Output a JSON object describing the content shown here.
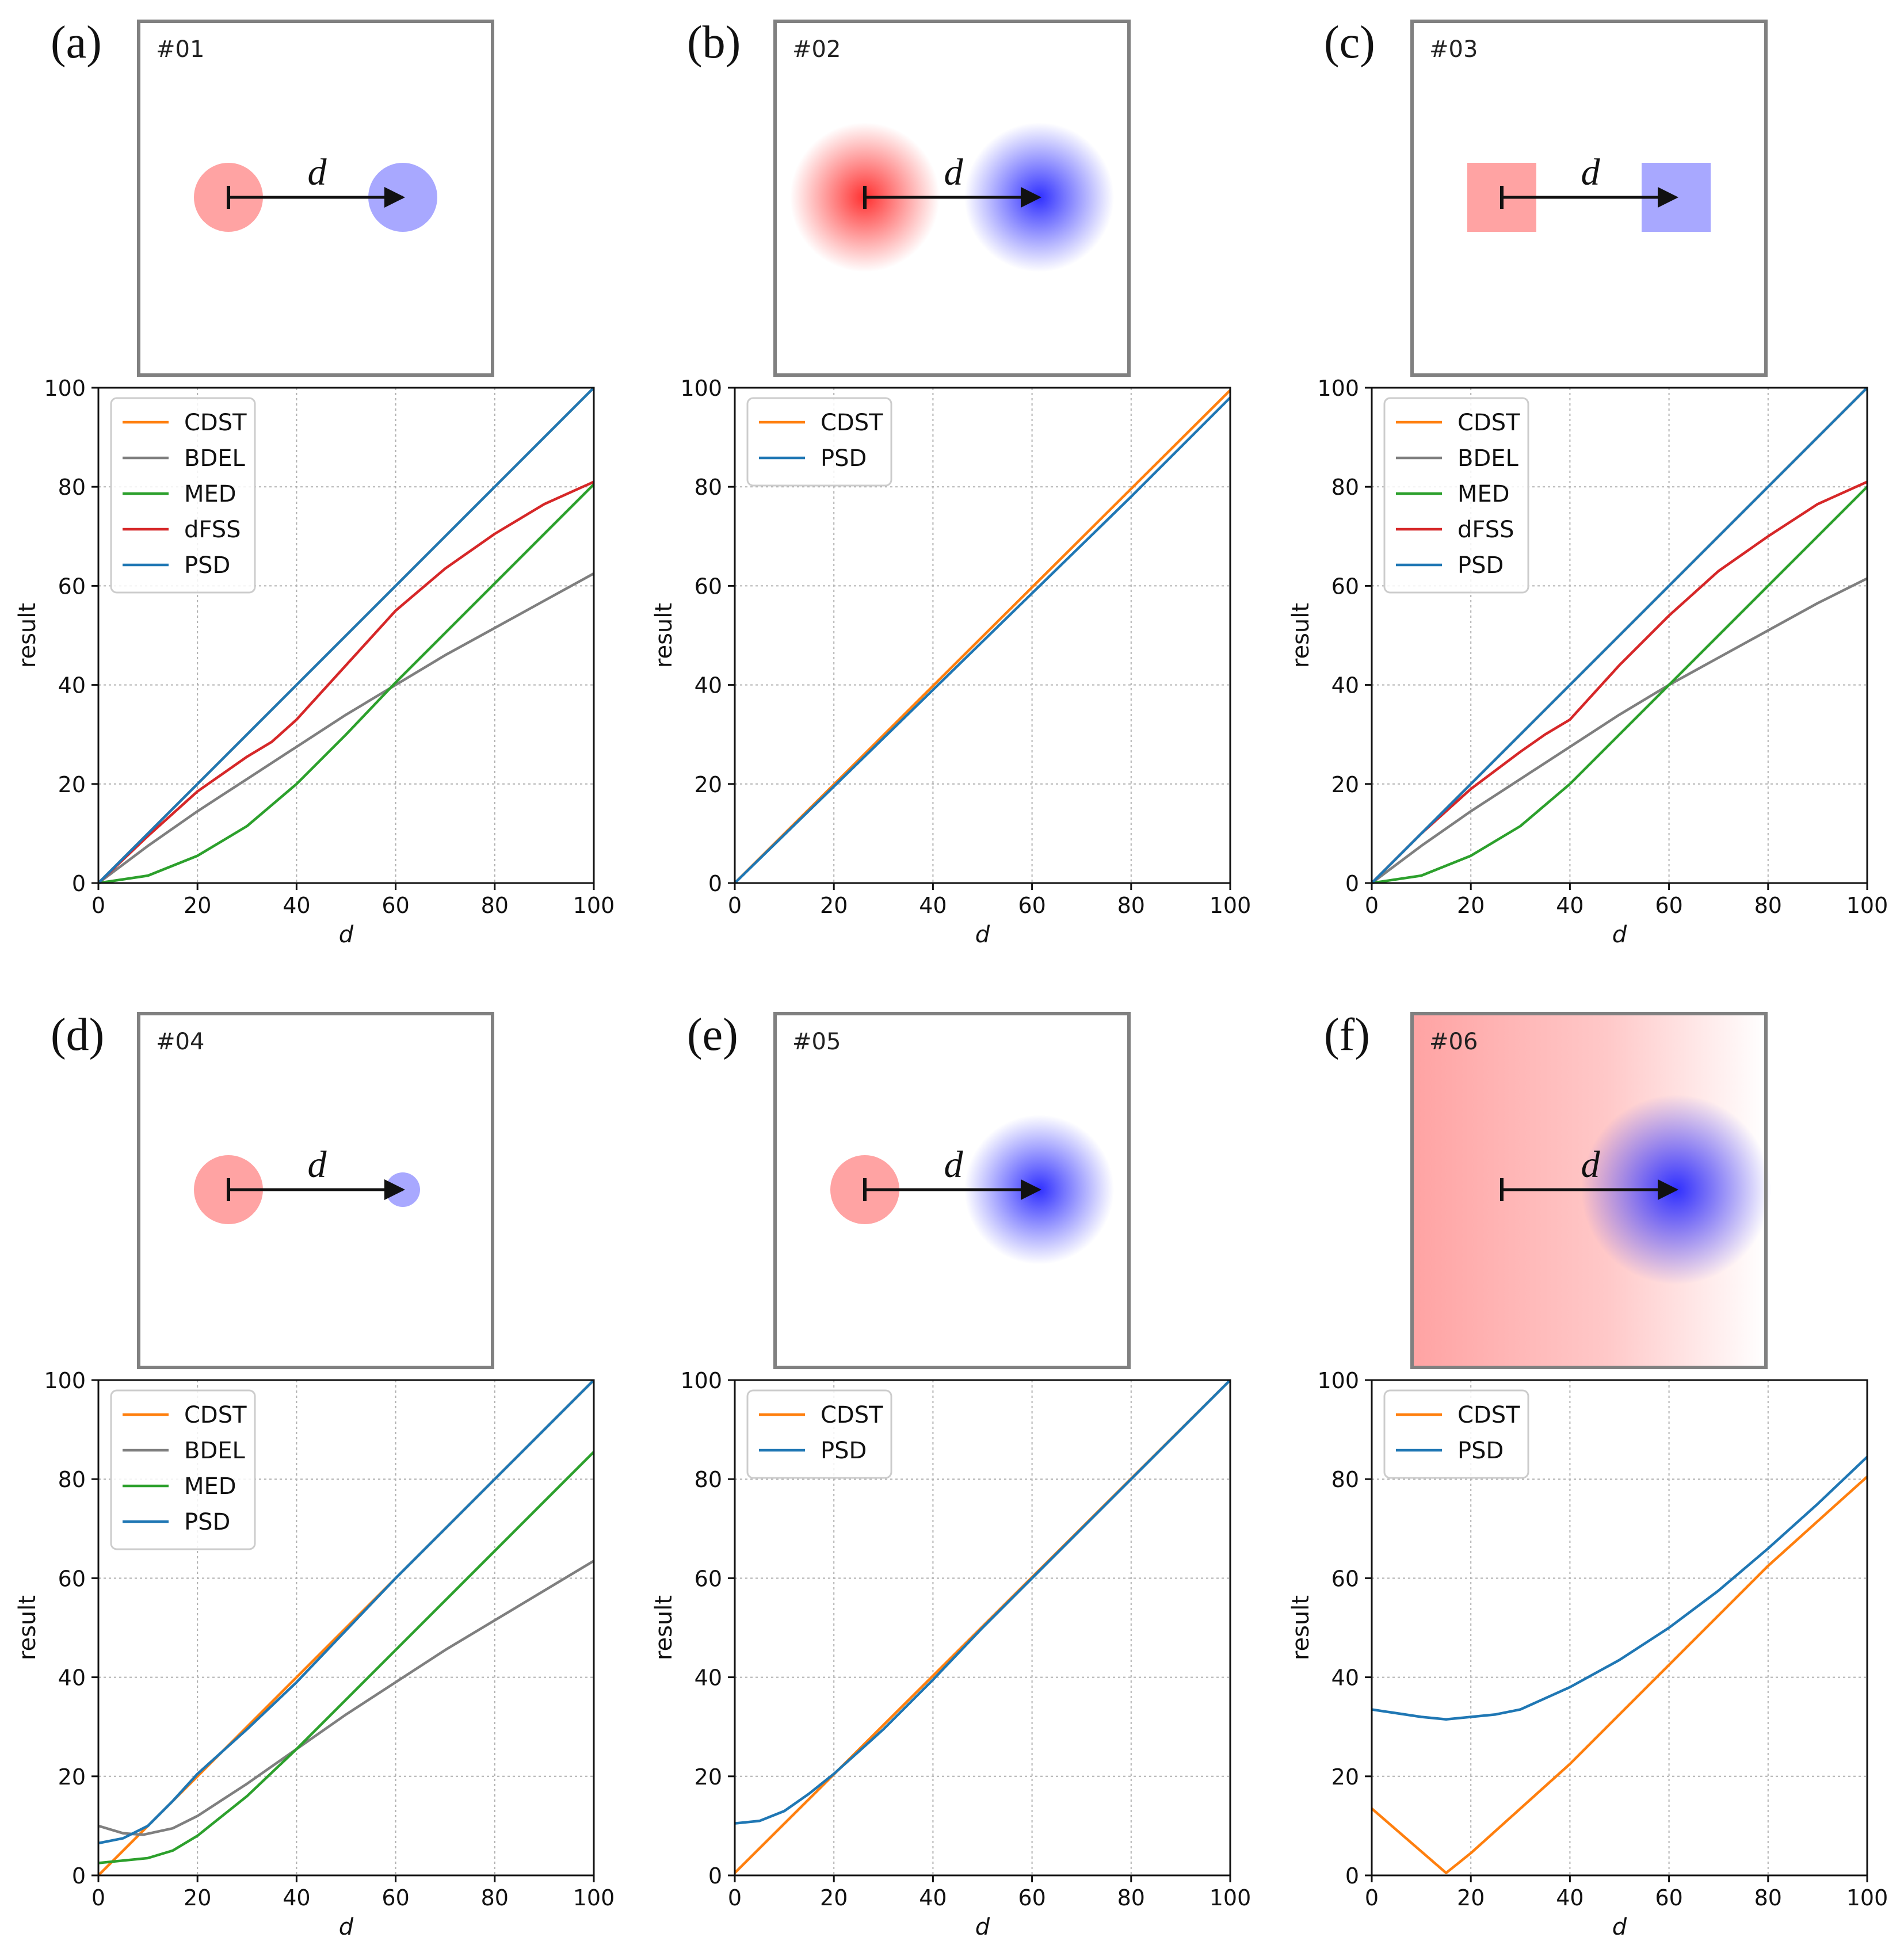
{
  "colors": {
    "CDST": "#ff7f0e",
    "BDEL": "#7f7f7f",
    "MED": "#2ca02c",
    "dFSS": "#d62728",
    "PSD": "#1f77b4",
    "red_object": "#ffa3a3",
    "blue_object": "#a8a8ff",
    "red_gauss": "#ff3030",
    "blue_gauss": "#3030ff"
  },
  "panels": [
    {
      "label": "(a)",
      "scene": {
        "id": "#01",
        "d_label": "d",
        "red": "disk",
        "blue": "disk"
      }
    },
    {
      "label": "(b)",
      "scene": {
        "id": "#02",
        "d_label": "d",
        "red": "gauss",
        "blue": "gauss"
      }
    },
    {
      "label": "(c)",
      "scene": {
        "id": "#03",
        "d_label": "d",
        "red": "square",
        "blue": "square"
      }
    },
    {
      "label": "(d)",
      "scene": {
        "id": "#04",
        "d_label": "d",
        "red": "disk",
        "blue": "small-disk"
      }
    },
    {
      "label": "(e)",
      "scene": {
        "id": "#05",
        "d_label": "d",
        "red": "disk",
        "blue": "gauss"
      }
    },
    {
      "label": "(f)",
      "scene": {
        "id": "#06",
        "d_label": "d",
        "red": "gradient",
        "blue": "big-gauss"
      }
    }
  ],
  "chart_data": [
    {
      "type": "line",
      "panel": "(a)",
      "xlabel": "d",
      "ylabel": "result",
      "xlim": [
        0,
        100
      ],
      "ylim": [
        0,
        100
      ],
      "xticks": [
        0,
        20,
        40,
        60,
        80,
        100
      ],
      "yticks": [
        0,
        20,
        40,
        60,
        80,
        100
      ],
      "grid": true,
      "legend_position": "top-left",
      "series": [
        {
          "name": "CDST",
          "x": [
            0,
            100
          ],
          "y": [
            0,
            100
          ]
        },
        {
          "name": "BDEL",
          "x": [
            0,
            10,
            20,
            30,
            40,
            50,
            60,
            70,
            80,
            90,
            100
          ],
          "y": [
            0,
            7.5,
            14.5,
            21,
            27.5,
            34,
            40,
            46,
            51.5,
            57,
            62.5
          ]
        },
        {
          "name": "MED",
          "x": [
            0,
            10,
            20,
            30,
            40,
            50,
            60,
            70,
            80,
            90,
            100
          ],
          "y": [
            0,
            1.5,
            5.5,
            11.5,
            20,
            30,
            40.5,
            50.5,
            60.5,
            70.5,
            80.5
          ]
        },
        {
          "name": "dFSS",
          "x": [
            0,
            10,
            20,
            30,
            35,
            40,
            50,
            60,
            70,
            80,
            90,
            100
          ],
          "y": [
            0,
            9.5,
            18.5,
            25.5,
            28.5,
            33,
            44,
            55,
            63.5,
            70.5,
            76.5,
            81
          ]
        },
        {
          "name": "PSD",
          "x": [
            0,
            100
          ],
          "y": [
            0,
            100
          ]
        }
      ]
    },
    {
      "type": "line",
      "panel": "(b)",
      "xlabel": "d",
      "ylabel": "result",
      "xlim": [
        0,
        100
      ],
      "ylim": [
        0,
        100
      ],
      "xticks": [
        0,
        20,
        40,
        60,
        80,
        100
      ],
      "yticks": [
        0,
        20,
        40,
        60,
        80,
        100
      ],
      "grid": true,
      "legend_position": "top-left",
      "series": [
        {
          "name": "CDST",
          "x": [
            0,
            100
          ],
          "y": [
            0,
            99.5
          ]
        },
        {
          "name": "PSD",
          "x": [
            0,
            20,
            40,
            60,
            80,
            100
          ],
          "y": [
            0,
            19.5,
            39,
            58.5,
            78,
            98
          ]
        }
      ]
    },
    {
      "type": "line",
      "panel": "(c)",
      "xlabel": "d",
      "ylabel": "result",
      "xlim": [
        0,
        100
      ],
      "ylim": [
        0,
        100
      ],
      "xticks": [
        0,
        20,
        40,
        60,
        80,
        100
      ],
      "yticks": [
        0,
        20,
        40,
        60,
        80,
        100
      ],
      "grid": true,
      "legend_position": "top-left",
      "series": [
        {
          "name": "CDST",
          "x": [
            0,
            100
          ],
          "y": [
            0,
            100
          ]
        },
        {
          "name": "BDEL",
          "x": [
            0,
            10,
            20,
            30,
            40,
            50,
            60,
            70,
            80,
            90,
            100
          ],
          "y": [
            0,
            7.5,
            14.5,
            21,
            27.5,
            34,
            40,
            45.5,
            51,
            56.5,
            61.5
          ]
        },
        {
          "name": "MED",
          "x": [
            0,
            10,
            20,
            30,
            40,
            50,
            60,
            70,
            80,
            90,
            100
          ],
          "y": [
            0,
            1.5,
            5.5,
            11.5,
            20,
            30,
            40,
            50,
            60,
            70,
            80
          ]
        },
        {
          "name": "dFSS",
          "x": [
            0,
            10,
            20,
            30,
            35,
            40,
            50,
            60,
            70,
            80,
            90,
            100
          ],
          "y": [
            0,
            10,
            19,
            26.5,
            30,
            33,
            44,
            54,
            63,
            70,
            76.5,
            81
          ]
        },
        {
          "name": "PSD",
          "x": [
            0,
            100
          ],
          "y": [
            0,
            100
          ]
        }
      ]
    },
    {
      "type": "line",
      "panel": "(d)",
      "xlabel": "d",
      "ylabel": "result",
      "xlim": [
        0,
        100
      ],
      "ylim": [
        0,
        100
      ],
      "xticks": [
        0,
        20,
        40,
        60,
        80,
        100
      ],
      "yticks": [
        0,
        20,
        40,
        60,
        80,
        100
      ],
      "grid": true,
      "legend_position": "top-left",
      "series": [
        {
          "name": "CDST",
          "x": [
            0,
            100
          ],
          "y": [
            0,
            100
          ]
        },
        {
          "name": "BDEL",
          "x": [
            0,
            5,
            9,
            15,
            20,
            30,
            40,
            50,
            60,
            70,
            80,
            90,
            100
          ],
          "y": [
            10,
            8.5,
            8.2,
            9.5,
            12,
            18.5,
            25.5,
            32.5,
            39,
            45.5,
            51.5,
            57.5,
            63.5
          ]
        },
        {
          "name": "MED",
          "x": [
            0,
            10,
            15,
            20,
            30,
            40,
            50,
            60,
            70,
            80,
            90,
            100
          ],
          "y": [
            2.5,
            3.5,
            5,
            8,
            16,
            25.5,
            35.5,
            45.5,
            55.5,
            65.5,
            75.5,
            85.5
          ]
        },
        {
          "name": "PSD",
          "x": [
            0,
            5,
            10,
            15,
            20,
            30,
            40,
            50,
            60,
            70,
            80,
            90,
            100
          ],
          "y": [
            6.5,
            7.5,
            10,
            15,
            20.5,
            29.5,
            39,
            49.5,
            60,
            70,
            80,
            90,
            100
          ]
        }
      ]
    },
    {
      "type": "line",
      "panel": "(e)",
      "xlabel": "d",
      "ylabel": "result",
      "xlim": [
        0,
        100
      ],
      "ylim": [
        0,
        100
      ],
      "xticks": [
        0,
        20,
        40,
        60,
        80,
        100
      ],
      "yticks": [
        0,
        20,
        40,
        60,
        80,
        100
      ],
      "grid": true,
      "legend_position": "top-left",
      "series": [
        {
          "name": "CDST",
          "x": [
            0,
            100
          ],
          "y": [
            0.5,
            100
          ]
        },
        {
          "name": "PSD",
          "x": [
            0,
            5,
            10,
            15,
            20,
            25,
            30,
            40,
            50,
            60,
            70,
            80,
            90,
            100
          ],
          "y": [
            10.5,
            11,
            13,
            16.5,
            20.5,
            25,
            29.5,
            39.5,
            50,
            60,
            70,
            80,
            90,
            100
          ]
        }
      ]
    },
    {
      "type": "line",
      "panel": "(f)",
      "xlabel": "d",
      "ylabel": "result",
      "xlim": [
        0,
        100
      ],
      "ylim": [
        0,
        100
      ],
      "xticks": [
        0,
        20,
        40,
        60,
        80,
        100
      ],
      "yticks": [
        0,
        20,
        40,
        60,
        80,
        100
      ],
      "grid": true,
      "legend_position": "top-left",
      "series": [
        {
          "name": "CDST",
          "x": [
            0,
            15,
            20,
            40,
            60,
            80,
            100
          ],
          "y": [
            13.5,
            0.5,
            4.5,
            22.5,
            42.5,
            62.5,
            80.5
          ]
        },
        {
          "name": "PSD",
          "x": [
            0,
            10,
            15,
            20,
            25,
            30,
            40,
            50,
            60,
            70,
            80,
            90,
            100
          ],
          "y": [
            33.5,
            32,
            31.5,
            32,
            32.5,
            33.5,
            38,
            43.5,
            50,
            57.5,
            66,
            75,
            84.5
          ]
        }
      ]
    }
  ]
}
